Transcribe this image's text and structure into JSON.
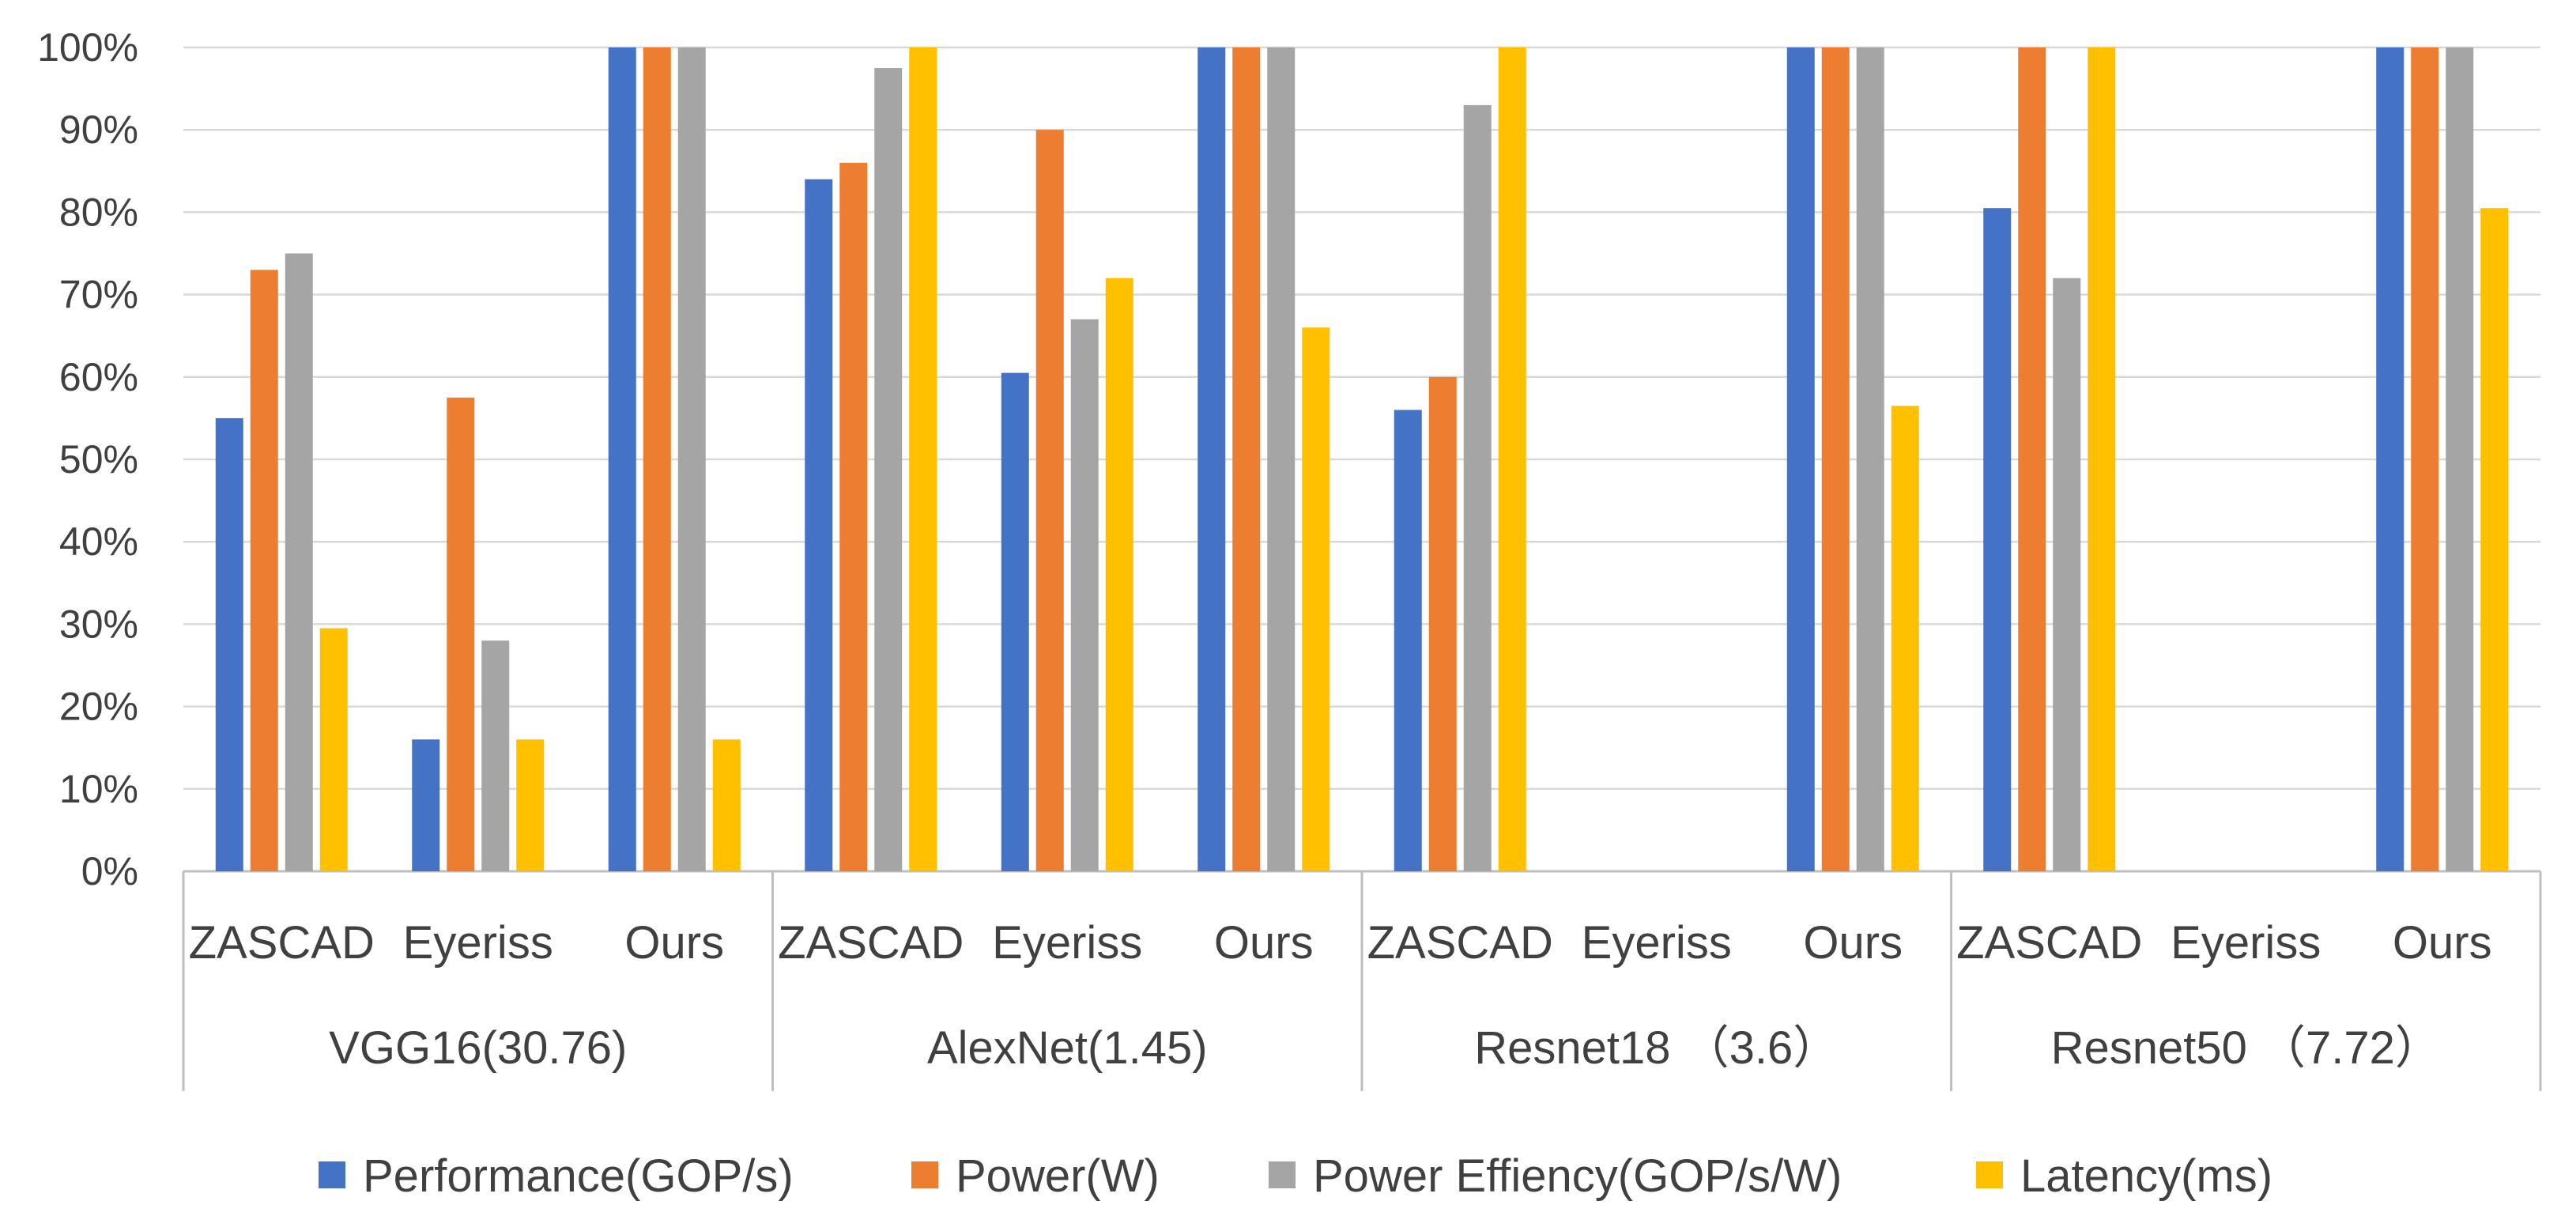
{
  "chart_data": {
    "type": "bar",
    "title": "",
    "xlabel": "",
    "ylabel": "",
    "ylim": [
      0,
      100
    ],
    "y_tick_labels": [
      "0%",
      "10%",
      "20%",
      "30%",
      "40%",
      "50%",
      "60%",
      "70%",
      "80%",
      "90%",
      "100%"
    ],
    "grid": true,
    "legend_position": "bottom",
    "groups": [
      {
        "label": "VGG16(30.76)",
        "subcategories": [
          "ZASCAD",
          "Eyeriss",
          "Ours"
        ]
      },
      {
        "label": "AlexNet(1.45)",
        "subcategories": [
          "ZASCAD",
          "Eyeriss",
          "Ours"
        ]
      },
      {
        "label": "Resnet18 （3.6）",
        "subcategories": [
          "ZASCAD",
          "Eyeriss",
          "Ours"
        ]
      },
      {
        "label": "Resnet50 （7.72）",
        "subcategories": [
          "ZASCAD",
          "Eyeriss",
          "Ours"
        ]
      }
    ],
    "series": [
      {
        "name": "Performance(GOP/s)",
        "color": "#4472C4",
        "values": [
          55,
          16,
          100,
          84,
          60.5,
          100,
          56,
          null,
          100,
          80.5,
          null,
          100
        ]
      },
      {
        "name": "Power(W)",
        "color": "#ED7D31",
        "values": [
          73,
          57.5,
          100,
          86,
          90,
          100,
          60,
          null,
          100,
          100,
          null,
          100
        ]
      },
      {
        "name": "Power Effiency(GOP/s/W)",
        "color": "#A5A5A5",
        "values": [
          75,
          28,
          100,
          97.5,
          67,
          100,
          93,
          null,
          100,
          72,
          null,
          100
        ]
      },
      {
        "name": "Latency(ms)",
        "color": "#FFC000",
        "values": [
          29.5,
          16,
          16,
          100,
          72,
          66,
          100,
          null,
          56.5,
          100,
          null,
          80.5
        ]
      }
    ]
  }
}
